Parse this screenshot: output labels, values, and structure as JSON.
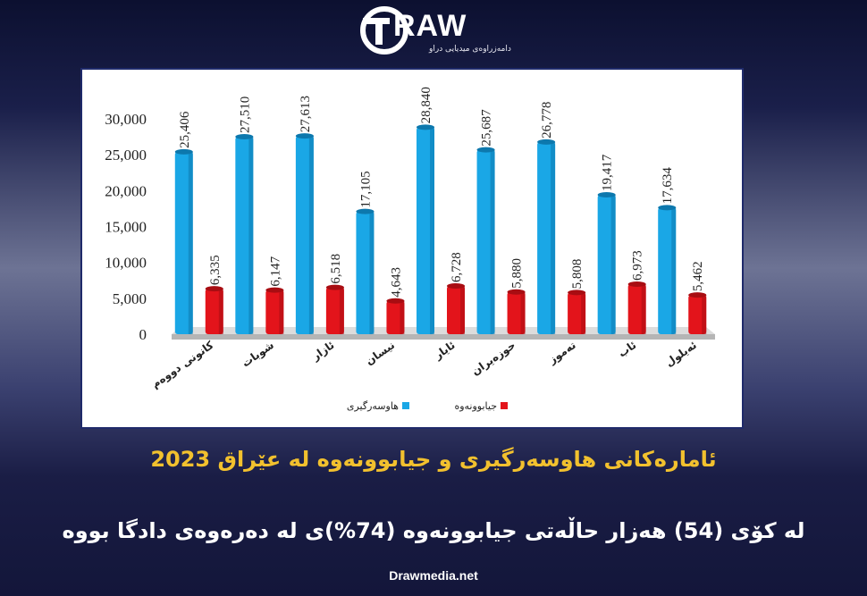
{
  "logo": {
    "word": "RAW",
    "tagline": "دامەزراوەی میدیایی دراو"
  },
  "headline": "ئامارەکانی هاوسەرگیری و جیابوونەوە لە عێراق 2023",
  "subheadline": "لە کۆی (54) هەزار حاڵەتی جیابوونەوە (74%)ی لە دەرەوەی دادگا بووە",
  "website": "Drawmedia.net",
  "colors": {
    "marriage": "#1aa7e6",
    "divorce": "#e3141b",
    "headline": "#f2c12e"
  },
  "chart_data": {
    "type": "bar",
    "categories": [
      "کانونی دووەم",
      "شوبات",
      "ئازار",
      "نیسان",
      "ئایار",
      "حوزەیران",
      "تەموز",
      "ئاب",
      "ئەیلول"
    ],
    "series": [
      {
        "name": "هاوسەرگیری",
        "values": [
          25406,
          27510,
          27613,
          17105,
          28840,
          25687,
          26778,
          19417,
          17634
        ]
      },
      {
        "name": "جیابوونەوە",
        "values": [
          6335,
          6147,
          6518,
          4643,
          6728,
          5880,
          5808,
          6973,
          5462
        ]
      }
    ],
    "value_labels": [
      [
        "25,406",
        "27,510",
        "27,613",
        "17,105",
        "28,840",
        "25,687",
        "26,778",
        "19,417",
        "17,634"
      ],
      [
        "6,335",
        "6,147",
        "6,518",
        "4,643",
        "6,728",
        "5,880",
        "5,808",
        "6,973",
        "5,462"
      ]
    ],
    "yticks": [
      "0",
      "5,000",
      "10,000",
      "15,000",
      "20,000",
      "25,000",
      "30,000"
    ],
    "ylim": [
      0,
      30000
    ],
    "legend_position": "bottom",
    "grid": false
  }
}
